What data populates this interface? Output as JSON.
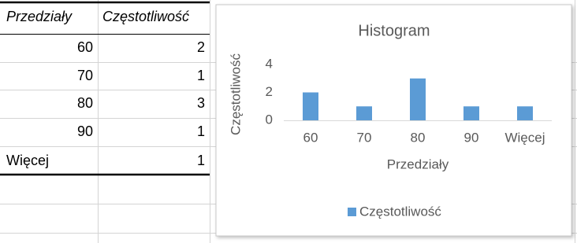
{
  "table": {
    "headers": [
      "Przedziały",
      "Częstotliwość"
    ],
    "rows": [
      [
        "60",
        "2"
      ],
      [
        "70",
        "1"
      ],
      [
        "80",
        "3"
      ],
      [
        "90",
        "1"
      ],
      [
        "Więcej",
        "1"
      ]
    ]
  },
  "chart_data": {
    "type": "bar",
    "title": "Histogram",
    "x_label": "Przedziały",
    "y_label": "Częstotliwość",
    "categories": [
      "60",
      "70",
      "80",
      "90",
      "Więcej"
    ],
    "series": [
      {
        "name": "Częstotliwość",
        "color": "#5b9bd5",
        "values": [
          2,
          1,
          3,
          1,
          1
        ]
      }
    ],
    "ylim": [
      0,
      4
    ],
    "yticks": [
      0,
      2,
      4
    ],
    "grid": false,
    "legend": "bottom"
  }
}
